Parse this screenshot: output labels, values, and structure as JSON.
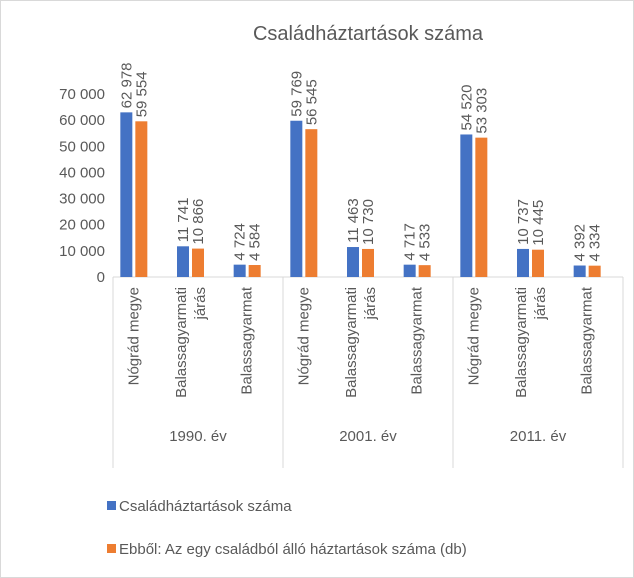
{
  "chart_data": {
    "type": "bar",
    "title": "Családháztartások száma",
    "categories": [
      "Nógrád megye",
      "Balassagyarmati járás",
      "Balassagyarmat",
      "Nógrád megye",
      "Balassagyarmati járás",
      "Balassagyarmat",
      "Nógrád megye",
      "Balassagyarmati járás",
      "Balassagyarmat"
    ],
    "groups": [
      "1990. év",
      "2001. év",
      "2011. év"
    ],
    "series": [
      {
        "name": "Családháztartások száma",
        "color": "#4472c4",
        "values": [
          62978,
          11741,
          4724,
          59769,
          11463,
          4717,
          54520,
          10737,
          4392
        ],
        "value_labels": [
          "62 978",
          "11 741",
          "4 724",
          "59 769",
          "11 463",
          "4 717",
          "54 520",
          "10 737",
          "4 392"
        ]
      },
      {
        "name": "Ebből: Az egy családból álló háztartások száma (db)",
        "color": "#ed7d31",
        "values": [
          59554,
          10866,
          4584,
          56545,
          10730,
          4533,
          53303,
          10445,
          4334
        ],
        "value_labels": [
          "59 554",
          "10 866",
          "4 584",
          "56 545",
          "10 730",
          "4 533",
          "53 303",
          "10 445",
          "4 334"
        ]
      }
    ],
    "ylim": [
      0,
      70000
    ],
    "yticks": [
      0,
      {
        "value": 10000,
        "label": "10 000"
      },
      {
        "value": 20000,
        "label": "20 000"
      },
      {
        "value": 30000,
        "label": "30 000"
      },
      {
        "value": 40000,
        "label": "40 000"
      },
      {
        "value": 50000,
        "label": "50 000"
      },
      {
        "value": 60000,
        "label": "60 000"
      },
      {
        "value": 70000,
        "label": "70 000"
      }
    ],
    "grid": false,
    "legend": "bottom"
  }
}
